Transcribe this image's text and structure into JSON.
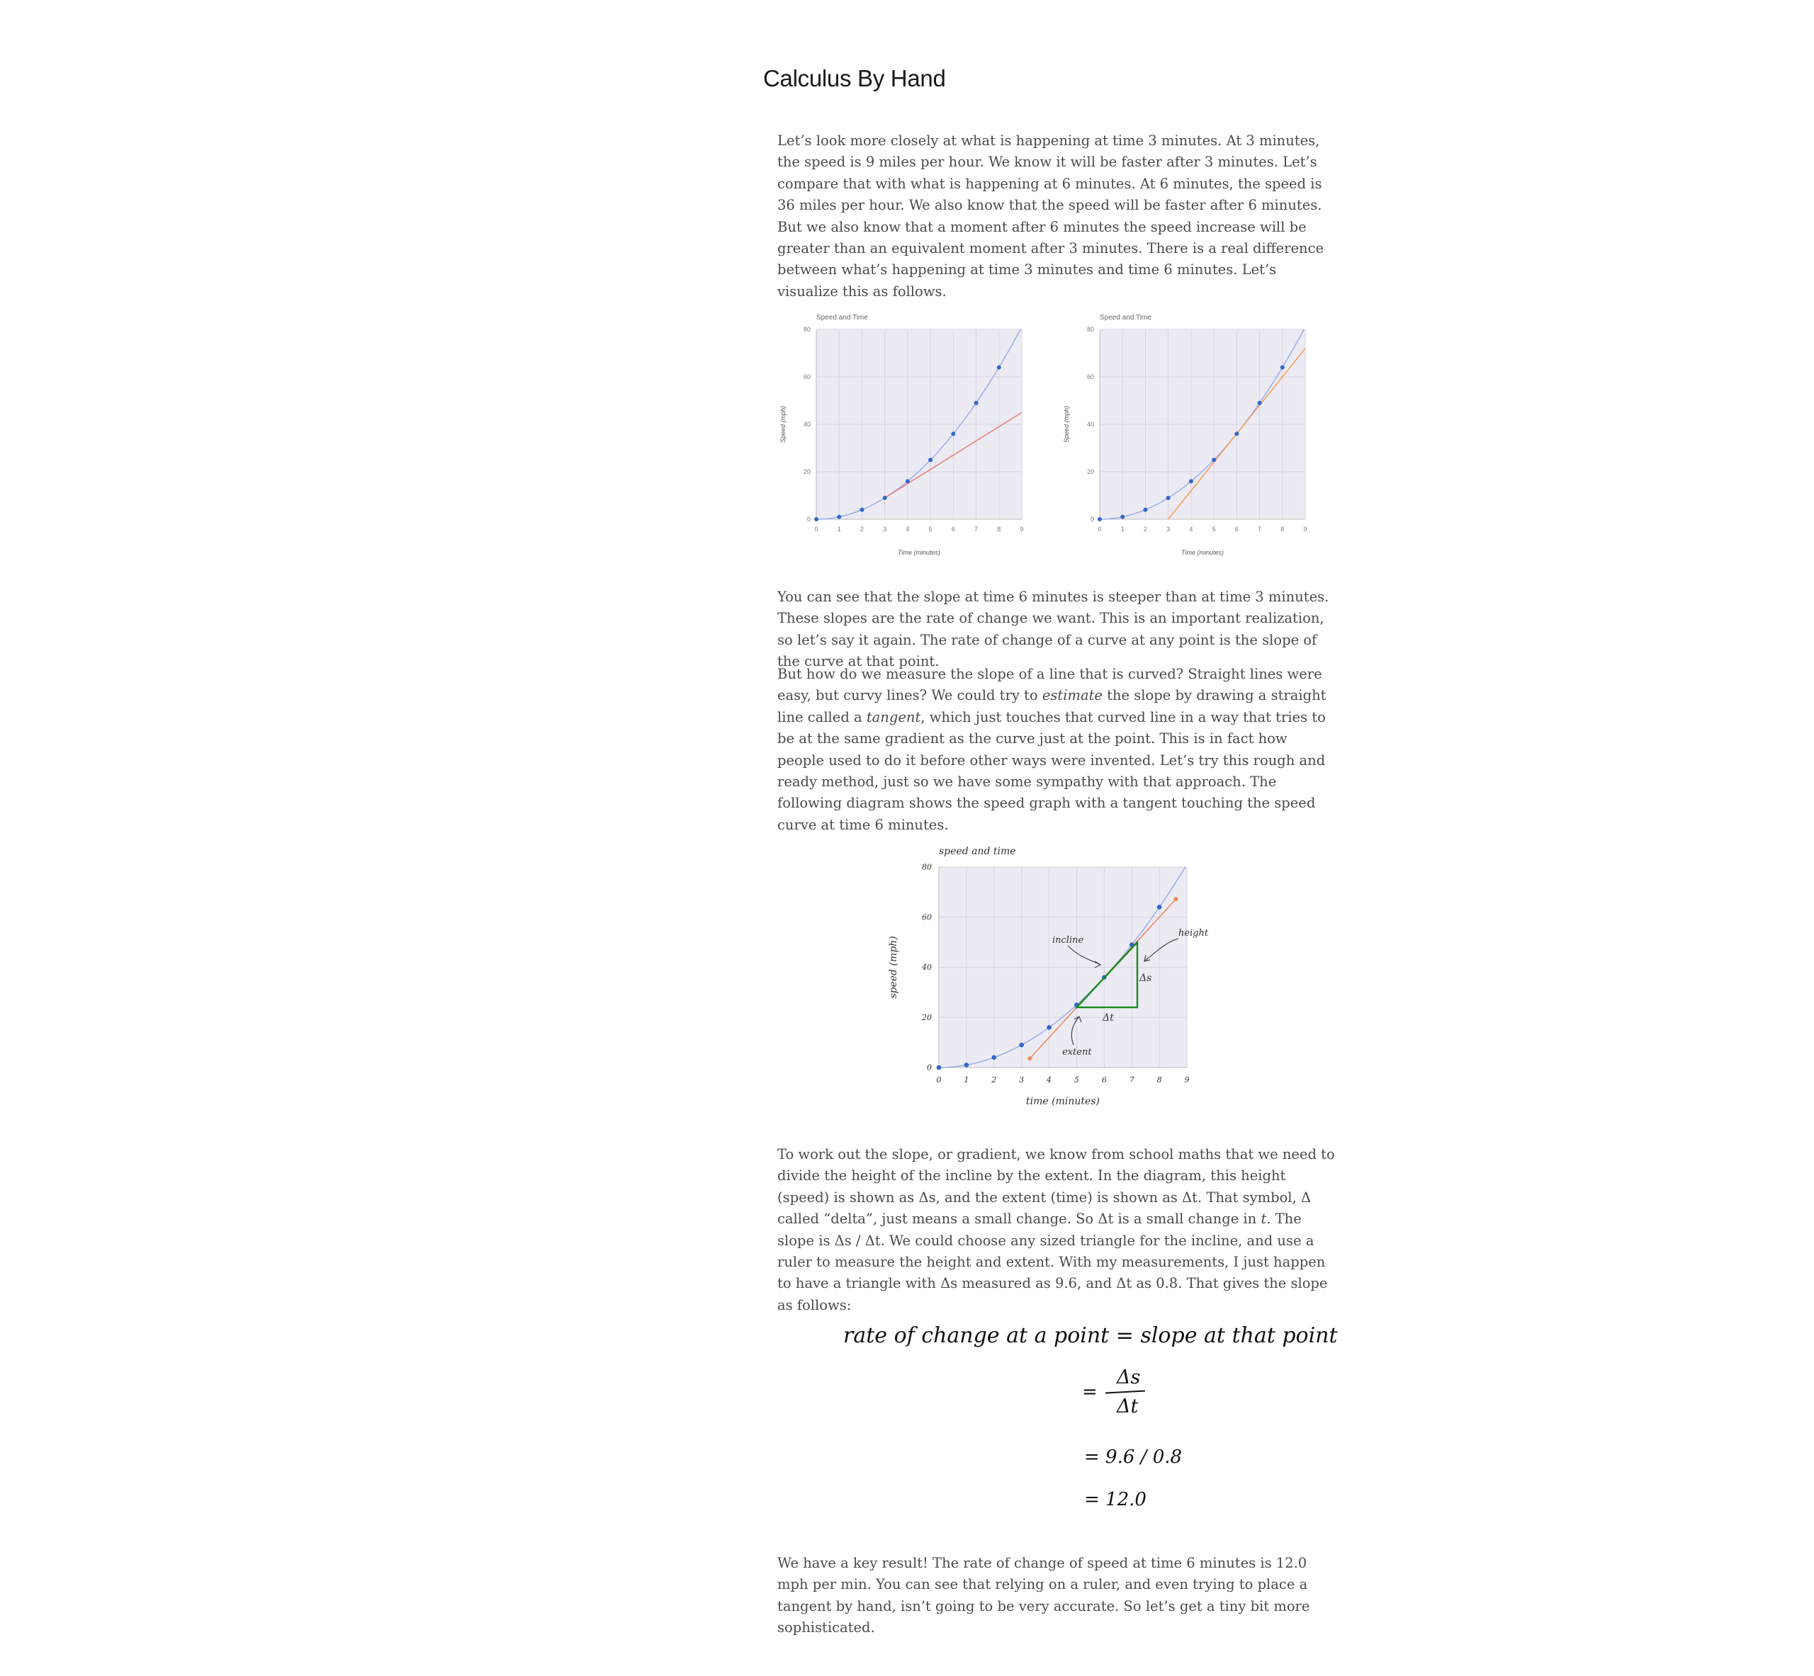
{
  "page": {
    "title": "Calculus By Hand"
  },
  "paragraphs": {
    "p1": "Let’s look more closely at what is happening at time 3 minutes. At 3 minutes, the speed is 9 miles per hour. We know it will be faster after 3 minutes. Let’s compare that with what is happening at 6 minutes. At 6 minutes, the speed is 36 miles per hour. We also know that the speed will be faster after 6 minutes. But we also know that a moment after 6 minutes the speed increase will be greater than an equivalent moment after 3 minutes. There is a real difference between what’s happening at time 3 minutes and time 6 minutes. Let’s visualize this as follows.",
    "p2": "You can see that the slope at time 6 minutes is steeper than at time 3 minutes. These slopes are the rate of change we want. This is an important realization, so let’s say it again. The rate of change of a curve at any point is the slope of the curve at that point.",
    "p3_a": "But how do we measure the slope of a line that is curved? Straight lines were easy, but curvy lines? We could try to ",
    "p3_em1": "estimate",
    "p3_b": " the slope by drawing a straight line called a ",
    "p3_em2": "tangent",
    "p3_c": ", which just touches that curved line in a way that tries to be at the same gradient as the curve just at the point. This is in fact how people used to do it before other ways were invented. Let’s try this rough and ready method, just so we have some sympathy with that approach. The following diagram shows the speed graph with a tangent touching the speed curve at time 6 minutes.",
    "p4_a": "To work out the slope, or gradient, we know from school maths that we need to divide the height of the incline by the extent. In the diagram, this height (speed) is shown as Δs, and the extent (time) is shown as Δt. That symbol, Δ called “delta”, just means a small change. So Δt is a small change in ",
    "p4_em": "t",
    "p4_b": ". The slope is Δs / Δt. We could choose any sized triangle for the incline, and use a ruler to measure the height and extent. With my measurements, I just happen to have a triangle with Δs measured as 9.6, and Δt as 0.8. That gives the slope as follows:",
    "p5": "We have a key result! The rate of change of speed at time 6 minutes is 12.0 mph per min. You can see that relying on a ruler, and even trying to place a tangent by hand, isn’t going to be very accurate. So let’s get a tiny bit more sophisticated."
  },
  "equation": {
    "line1": "rate of change at a point = slope at that point",
    "eq_sign": "=",
    "numerator": "Δs",
    "denominator": "Δt",
    "line3": "= 9.6 / 0.8",
    "line4": "= 12.0"
  },
  "chart_data": [
    {
      "type": "line",
      "title": "Speed and Time",
      "xlabel": "Time (minutes)",
      "ylabel": "Speed (mph)",
      "xlim": [
        0,
        9
      ],
      "ylim": [
        0,
        80
      ],
      "x_ticks": [
        "0",
        "1",
        "2",
        "3",
        "4",
        "5",
        "6",
        "7",
        "8",
        "9"
      ],
      "y_ticks": [
        "0",
        "20",
        "40",
        "60",
        "80"
      ],
      "grid": true,
      "series": [
        {
          "curve": "s = t^2",
          "points_x": [
            0,
            1,
            2,
            3,
            4,
            5,
            6,
            7,
            8
          ],
          "points_y": [
            0,
            1,
            4,
            9,
            16,
            25,
            36,
            49,
            64
          ],
          "color": "#3366cc"
        },
        {
          "tangent_at": 3,
          "slope": 6,
          "from_x": 3,
          "to_x": 9,
          "color": "#e8827a"
        }
      ]
    },
    {
      "type": "line",
      "title": "Speed and Time",
      "xlabel": "Time (minutes)",
      "ylabel": "Speed (mph)",
      "xlim": [
        0,
        9
      ],
      "ylim": [
        0,
        80
      ],
      "x_ticks": [
        "0",
        "1",
        "2",
        "3",
        "4",
        "5",
        "6",
        "7",
        "8",
        "9"
      ],
      "y_ticks": [
        "0",
        "20",
        "40",
        "60",
        "80"
      ],
      "grid": true,
      "series": [
        {
          "curve": "s = t^2",
          "points_x": [
            0,
            1,
            2,
            3,
            4,
            5,
            6,
            7,
            8
          ],
          "points_y": [
            0,
            1,
            4,
            9,
            16,
            25,
            36,
            49,
            64
          ],
          "color": "#3366cc"
        },
        {
          "tangent_at": 6,
          "slope": 12,
          "from_x": 3,
          "to_x": 9,
          "color": "#f5a25d"
        }
      ]
    },
    {
      "type": "line",
      "title": "speed and time",
      "xlabel": "time (minutes)",
      "ylabel": "speed (mph)",
      "xlim": [
        0,
        9
      ],
      "ylim": [
        0,
        80
      ],
      "x_ticks": [
        "0",
        "1",
        "2",
        "3",
        "4",
        "5",
        "6",
        "7",
        "8",
        "9"
      ],
      "y_ticks": [
        "0",
        "20",
        "40",
        "60",
        "80"
      ],
      "grid": true,
      "series": [
        {
          "curve": "s = t^2",
          "points_x": [
            0,
            1,
            2,
            3,
            4,
            5,
            6,
            7,
            8
          ],
          "points_y": [
            0,
            1,
            4,
            9,
            16,
            25,
            36,
            49,
            64
          ],
          "color": "#3366cc"
        },
        {
          "tangent_at": 6,
          "slope": 12,
          "from_x": 3.3,
          "to_x": 8.6,
          "color": "#f08a5d"
        }
      ],
      "triangle": {
        "x1": 5,
        "x2": 7.2,
        "y1": 24,
        "y2": 50,
        "color": "#1a8a1a"
      },
      "annotations": {
        "incline": "incline",
        "height": "height",
        "extent": "extent",
        "delta_s": "Δs",
        "delta_t": "Δt"
      }
    }
  ]
}
